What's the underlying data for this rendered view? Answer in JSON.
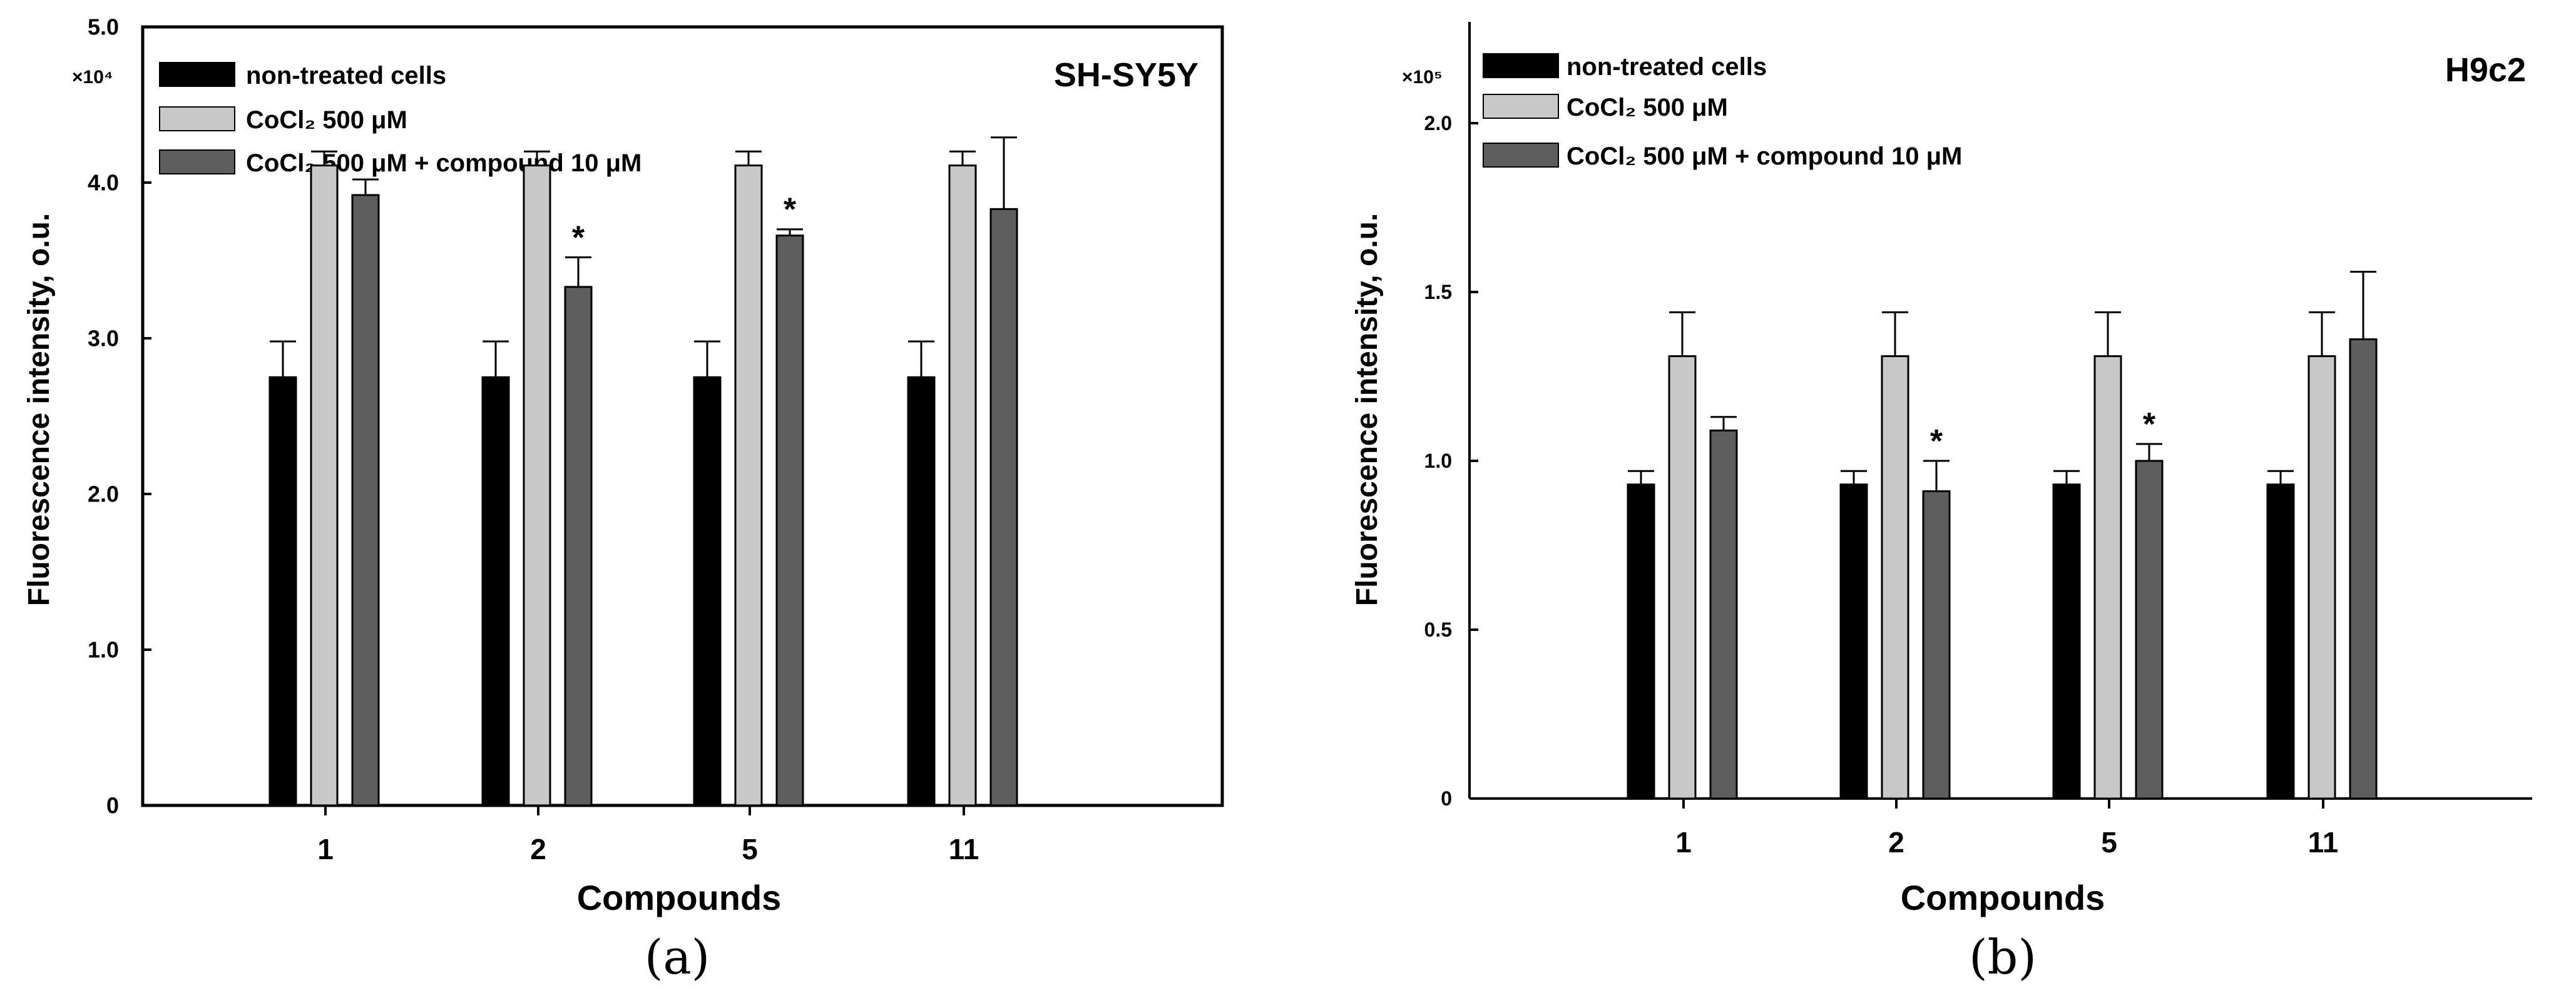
{
  "colors": {
    "untreated": "#000000",
    "cocl2": "#c8c8c8",
    "compound": "#5e5e5e",
    "axis": "#000000"
  },
  "legend": [
    {
      "key": "untreated",
      "label": "non-treated cells"
    },
    {
      "key": "cocl2",
      "label": "CoCl₂ 500 μM"
    },
    {
      "key": "compound",
      "label": "CoCl₂ 500 μM + compound 10 μM"
    }
  ],
  "chart_data": [
    {
      "type": "bar",
      "panel": "(a)",
      "title": "SH-SY5Y",
      "xlabel": "Compounds",
      "ylabel": "Fluorescence intensity, o.u.",
      "y_multiplier": "×10⁴",
      "ylim": [
        0,
        5.0
      ],
      "yticks": [
        "0",
        "1.0",
        "2.0",
        "3.0",
        "4.0",
        "5.0"
      ],
      "grid": false,
      "categories": [
        "1",
        "2",
        "5",
        "11"
      ],
      "series": [
        {
          "name": "non-treated cells",
          "values": [
            2.75,
            2.75,
            2.75,
            2.75
          ],
          "errors": [
            0.23,
            0.23,
            0.23,
            0.23
          ]
        },
        {
          "name": "CoCl₂ 500 μM",
          "values": [
            4.11,
            4.11,
            4.11,
            4.11
          ],
          "errors": [
            0.09,
            0.09,
            0.09,
            0.09
          ]
        },
        {
          "name": "CoCl₂ 500 μM + compound 10 μM",
          "values": [
            3.92,
            3.33,
            3.66,
            3.83
          ],
          "errors": [
            0.1,
            0.19,
            0.04,
            0.46
          ]
        }
      ],
      "significance": [
        "",
        "*",
        "*",
        ""
      ]
    },
    {
      "type": "bar",
      "panel": "(b)",
      "title": "H9c2",
      "xlabel": "Compounds",
      "ylabel": "Fluorescence intensity, o.u.",
      "y_multiplier": "×10⁵",
      "ylim": [
        0,
        2.3
      ],
      "yticks": [
        "0",
        "0.5",
        "1.0",
        "1.5",
        "2.0"
      ],
      "grid": false,
      "categories": [
        "1",
        "2",
        "5",
        "11"
      ],
      "series": [
        {
          "name": "non-treated cells",
          "values": [
            0.93,
            0.93,
            0.93,
            0.93
          ],
          "errors": [
            0.04,
            0.04,
            0.04,
            0.04
          ]
        },
        {
          "name": "CoCl₂ 500 μM",
          "values": [
            1.31,
            1.31,
            1.31,
            1.31
          ],
          "errors": [
            0.13,
            0.13,
            0.13,
            0.13
          ]
        },
        {
          "name": "CoCl₂ 500 μM + compound 10 μM",
          "values": [
            1.09,
            0.91,
            1.0,
            1.36
          ],
          "errors": [
            0.04,
            0.09,
            0.05,
            0.2
          ]
        }
      ],
      "significance": [
        "",
        "*",
        "*",
        ""
      ]
    }
  ]
}
